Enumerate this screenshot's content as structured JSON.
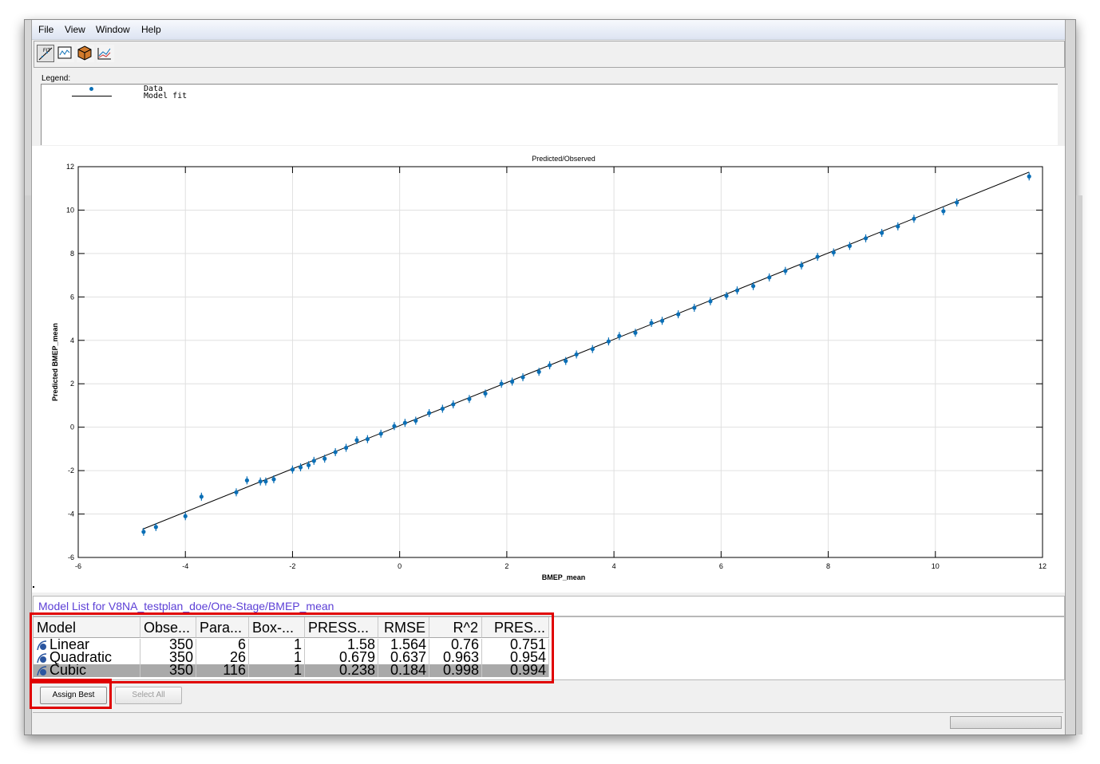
{
  "menu": {
    "items": [
      "File",
      "View",
      "Window",
      "Help"
    ]
  },
  "toolbar": {
    "buttons": [
      "fit-plot-icon",
      "response-plot-icon",
      "cube-icon",
      "line-plot-icon"
    ]
  },
  "legend": {
    "label": "Legend:",
    "entries": [
      "Data",
      "Model fit"
    ]
  },
  "chart_data": {
    "type": "scatter",
    "title": "Predicted/Observed",
    "xlabel": "BMEP_mean",
    "ylabel": "Predicted BMEP_mean",
    "xlim": [
      -6,
      12
    ],
    "ylim": [
      -6,
      12
    ],
    "xticks": [
      -6,
      -4,
      -2,
      0,
      2,
      4,
      6,
      8,
      10,
      12
    ],
    "yticks": [
      -6,
      -4,
      -2,
      0,
      2,
      4,
      6,
      8,
      10,
      12
    ],
    "grid": true,
    "series": [
      {
        "name": "Data",
        "color": "#0b6fb6",
        "x": [
          -4.78,
          -4.55,
          -4.0,
          -3.7,
          -3.05,
          -2.85,
          -2.6,
          -2.5,
          -2.35,
          -2.0,
          -1.85,
          -1.7,
          -1.6,
          -1.4,
          -1.2,
          -1.0,
          -0.8,
          -0.6,
          -0.35,
          -0.1,
          0.1,
          0.3,
          0.55,
          0.8,
          1.0,
          1.3,
          1.6,
          1.9,
          2.1,
          2.3,
          2.6,
          2.8,
          3.1,
          3.3,
          3.6,
          3.9,
          4.1,
          4.4,
          4.7,
          4.9,
          5.2,
          5.5,
          5.8,
          6.1,
          6.3,
          6.6,
          6.9,
          7.2,
          7.5,
          7.8,
          8.1,
          8.4,
          8.7,
          9.0,
          9.3,
          9.6,
          10.15,
          10.4,
          11.75
        ],
        "y": [
          -4.82,
          -4.6,
          -4.1,
          -3.2,
          -3.0,
          -2.45,
          -2.5,
          -2.5,
          -2.4,
          -1.95,
          -1.85,
          -1.75,
          -1.55,
          -1.45,
          -1.15,
          -0.95,
          -0.6,
          -0.55,
          -0.3,
          0.05,
          0.2,
          0.3,
          0.65,
          0.85,
          1.05,
          1.3,
          1.55,
          2.0,
          2.1,
          2.3,
          2.55,
          2.85,
          3.05,
          3.35,
          3.6,
          3.95,
          4.2,
          4.35,
          4.8,
          4.9,
          5.2,
          5.5,
          5.8,
          6.05,
          6.3,
          6.5,
          6.9,
          7.2,
          7.45,
          7.85,
          8.05,
          8.35,
          8.7,
          8.95,
          9.25,
          9.6,
          9.95,
          10.35,
          11.55
        ]
      },
      {
        "name": "Model fit",
        "color": "#000000",
        "x": [
          -4.8,
          11.75
        ],
        "y": [
          -4.7,
          11.75
        ]
      }
    ]
  },
  "model_list": {
    "title": "Model List for V8NA_testplan_doe/One-Stage/BMEP_mean",
    "columns": [
      "Model",
      "Obse...",
      "Para...",
      "Box-...",
      "PRESS...",
      "RMSE",
      "R^2",
      "PRES..."
    ],
    "rows": [
      {
        "name": "Linear",
        "values": [
          "350",
          "6",
          "1",
          "1.58",
          "1.564",
          "0.76",
          "0.751"
        ]
      },
      {
        "name": "Quadratic",
        "values": [
          "350",
          "26",
          "1",
          "0.679",
          "0.637",
          "0.963",
          "0.954"
        ]
      },
      {
        "name": "Cubic",
        "values": [
          "350",
          "116",
          "1",
          "0.238",
          "0.184",
          "0.998",
          "0.994"
        ]
      }
    ]
  },
  "buttons": {
    "assign_best": "Assign Best",
    "select_all": "Select All"
  }
}
